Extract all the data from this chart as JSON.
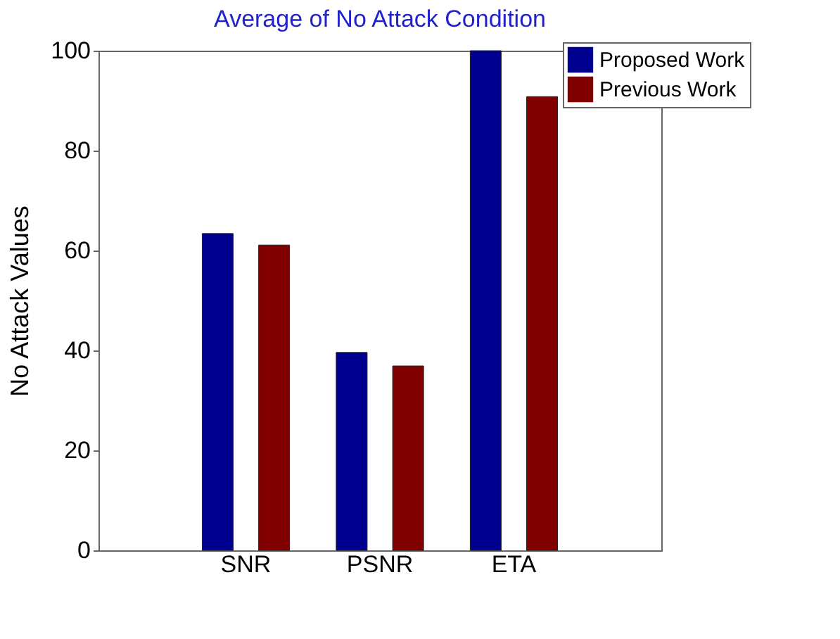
{
  "chart_data": {
    "type": "bar",
    "title": "Average of No Attack Condition",
    "ylabel": "No Attack Values",
    "categories": [
      "SNR",
      "PSNR",
      "ETA"
    ],
    "series": [
      {
        "name": "Proposed Work",
        "color": "#00008f",
        "values": [
          63.4,
          39.6,
          100
        ]
      },
      {
        "name": "Previous Work",
        "color": "#800000",
        "values": [
          61.1,
          36.9,
          90.8
        ]
      }
    ],
    "ylim": [
      0,
      100
    ],
    "yticks": [
      0,
      20,
      40,
      60,
      80,
      100
    ],
    "grid": false,
    "legend": "top right"
  }
}
